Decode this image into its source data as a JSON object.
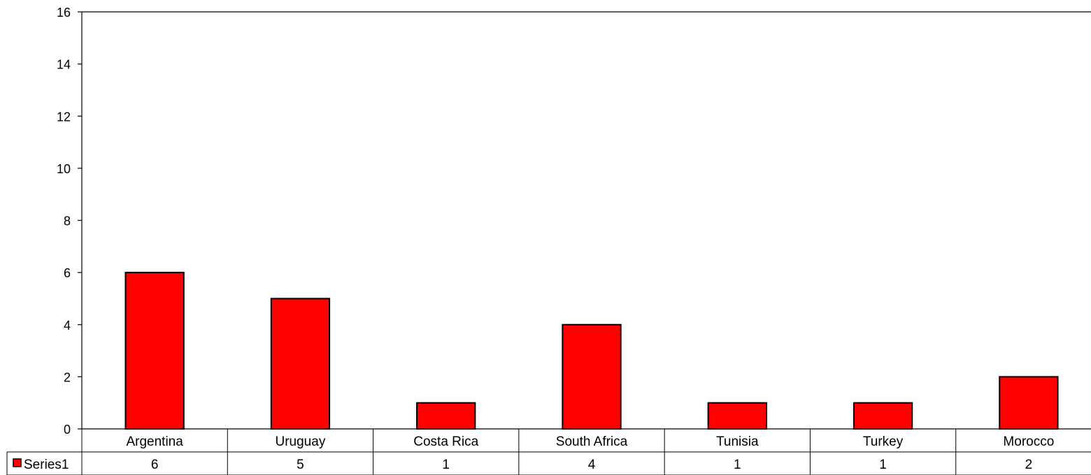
{
  "chart_data": {
    "type": "bar",
    "categories": [
      "Argentina",
      "Uruguay",
      "Costa Rica",
      "South Africa",
      "Tunisia",
      "Turkey",
      "Morocco"
    ],
    "series": [
      {
        "name": "Series1",
        "values": [
          6,
          5,
          1,
          4,
          1,
          1,
          2
        ],
        "color": "#ff0000"
      }
    ],
    "title": "",
    "xlabel": "",
    "ylabel": "",
    "ylim": [
      0,
      16
    ],
    "yticks": [
      0,
      2,
      4,
      6,
      8,
      10,
      12,
      14,
      16
    ],
    "grid": false,
    "legend": "data-table-left",
    "data_table": true
  }
}
